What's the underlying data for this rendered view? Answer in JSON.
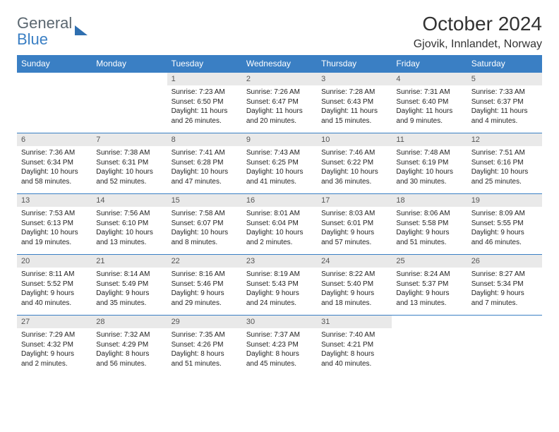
{
  "brand": {
    "text1": "General",
    "text2": "Blue"
  },
  "title": {
    "month": "October 2024",
    "location": "Gjovik, Innlandet, Norway"
  },
  "colors": {
    "header_bg": "#3a7fc4",
    "header_fg": "#ffffff",
    "daynum_bg": "#e9e9e9",
    "row_border": "#3a7fc4",
    "logo_gray": "#5b6770",
    "logo_blue": "#3a7fc4",
    "background": "#ffffff",
    "text": "#222222"
  },
  "typography": {
    "title_fontsize": 28,
    "location_fontsize": 16,
    "header_fontsize": 12,
    "daynum_fontsize": 11,
    "body_fontsize": 10
  },
  "weekdays": [
    "Sunday",
    "Monday",
    "Tuesday",
    "Wednesday",
    "Thursday",
    "Friday",
    "Saturday"
  ],
  "weeks": [
    [
      null,
      null,
      {
        "n": "1",
        "sr": "Sunrise: 7:23 AM",
        "ss": "Sunset: 6:50 PM",
        "dl": "Daylight: 11 hours and 26 minutes."
      },
      {
        "n": "2",
        "sr": "Sunrise: 7:26 AM",
        "ss": "Sunset: 6:47 PM",
        "dl": "Daylight: 11 hours and 20 minutes."
      },
      {
        "n": "3",
        "sr": "Sunrise: 7:28 AM",
        "ss": "Sunset: 6:43 PM",
        "dl": "Daylight: 11 hours and 15 minutes."
      },
      {
        "n": "4",
        "sr": "Sunrise: 7:31 AM",
        "ss": "Sunset: 6:40 PM",
        "dl": "Daylight: 11 hours and 9 minutes."
      },
      {
        "n": "5",
        "sr": "Sunrise: 7:33 AM",
        "ss": "Sunset: 6:37 PM",
        "dl": "Daylight: 11 hours and 4 minutes."
      }
    ],
    [
      {
        "n": "6",
        "sr": "Sunrise: 7:36 AM",
        "ss": "Sunset: 6:34 PM",
        "dl": "Daylight: 10 hours and 58 minutes."
      },
      {
        "n": "7",
        "sr": "Sunrise: 7:38 AM",
        "ss": "Sunset: 6:31 PM",
        "dl": "Daylight: 10 hours and 52 minutes."
      },
      {
        "n": "8",
        "sr": "Sunrise: 7:41 AM",
        "ss": "Sunset: 6:28 PM",
        "dl": "Daylight: 10 hours and 47 minutes."
      },
      {
        "n": "9",
        "sr": "Sunrise: 7:43 AM",
        "ss": "Sunset: 6:25 PM",
        "dl": "Daylight: 10 hours and 41 minutes."
      },
      {
        "n": "10",
        "sr": "Sunrise: 7:46 AM",
        "ss": "Sunset: 6:22 PM",
        "dl": "Daylight: 10 hours and 36 minutes."
      },
      {
        "n": "11",
        "sr": "Sunrise: 7:48 AM",
        "ss": "Sunset: 6:19 PM",
        "dl": "Daylight: 10 hours and 30 minutes."
      },
      {
        "n": "12",
        "sr": "Sunrise: 7:51 AM",
        "ss": "Sunset: 6:16 PM",
        "dl": "Daylight: 10 hours and 25 minutes."
      }
    ],
    [
      {
        "n": "13",
        "sr": "Sunrise: 7:53 AM",
        "ss": "Sunset: 6:13 PM",
        "dl": "Daylight: 10 hours and 19 minutes."
      },
      {
        "n": "14",
        "sr": "Sunrise: 7:56 AM",
        "ss": "Sunset: 6:10 PM",
        "dl": "Daylight: 10 hours and 13 minutes."
      },
      {
        "n": "15",
        "sr": "Sunrise: 7:58 AM",
        "ss": "Sunset: 6:07 PM",
        "dl": "Daylight: 10 hours and 8 minutes."
      },
      {
        "n": "16",
        "sr": "Sunrise: 8:01 AM",
        "ss": "Sunset: 6:04 PM",
        "dl": "Daylight: 10 hours and 2 minutes."
      },
      {
        "n": "17",
        "sr": "Sunrise: 8:03 AM",
        "ss": "Sunset: 6:01 PM",
        "dl": "Daylight: 9 hours and 57 minutes."
      },
      {
        "n": "18",
        "sr": "Sunrise: 8:06 AM",
        "ss": "Sunset: 5:58 PM",
        "dl": "Daylight: 9 hours and 51 minutes."
      },
      {
        "n": "19",
        "sr": "Sunrise: 8:09 AM",
        "ss": "Sunset: 5:55 PM",
        "dl": "Daylight: 9 hours and 46 minutes."
      }
    ],
    [
      {
        "n": "20",
        "sr": "Sunrise: 8:11 AM",
        "ss": "Sunset: 5:52 PM",
        "dl": "Daylight: 9 hours and 40 minutes."
      },
      {
        "n": "21",
        "sr": "Sunrise: 8:14 AM",
        "ss": "Sunset: 5:49 PM",
        "dl": "Daylight: 9 hours and 35 minutes."
      },
      {
        "n": "22",
        "sr": "Sunrise: 8:16 AM",
        "ss": "Sunset: 5:46 PM",
        "dl": "Daylight: 9 hours and 29 minutes."
      },
      {
        "n": "23",
        "sr": "Sunrise: 8:19 AM",
        "ss": "Sunset: 5:43 PM",
        "dl": "Daylight: 9 hours and 24 minutes."
      },
      {
        "n": "24",
        "sr": "Sunrise: 8:22 AM",
        "ss": "Sunset: 5:40 PM",
        "dl": "Daylight: 9 hours and 18 minutes."
      },
      {
        "n": "25",
        "sr": "Sunrise: 8:24 AM",
        "ss": "Sunset: 5:37 PM",
        "dl": "Daylight: 9 hours and 13 minutes."
      },
      {
        "n": "26",
        "sr": "Sunrise: 8:27 AM",
        "ss": "Sunset: 5:34 PM",
        "dl": "Daylight: 9 hours and 7 minutes."
      }
    ],
    [
      {
        "n": "27",
        "sr": "Sunrise: 7:29 AM",
        "ss": "Sunset: 4:32 PM",
        "dl": "Daylight: 9 hours and 2 minutes."
      },
      {
        "n": "28",
        "sr": "Sunrise: 7:32 AM",
        "ss": "Sunset: 4:29 PM",
        "dl": "Daylight: 8 hours and 56 minutes."
      },
      {
        "n": "29",
        "sr": "Sunrise: 7:35 AM",
        "ss": "Sunset: 4:26 PM",
        "dl": "Daylight: 8 hours and 51 minutes."
      },
      {
        "n": "30",
        "sr": "Sunrise: 7:37 AM",
        "ss": "Sunset: 4:23 PM",
        "dl": "Daylight: 8 hours and 45 minutes."
      },
      {
        "n": "31",
        "sr": "Sunrise: 7:40 AM",
        "ss": "Sunset: 4:21 PM",
        "dl": "Daylight: 8 hours and 40 minutes."
      },
      null,
      null
    ]
  ]
}
